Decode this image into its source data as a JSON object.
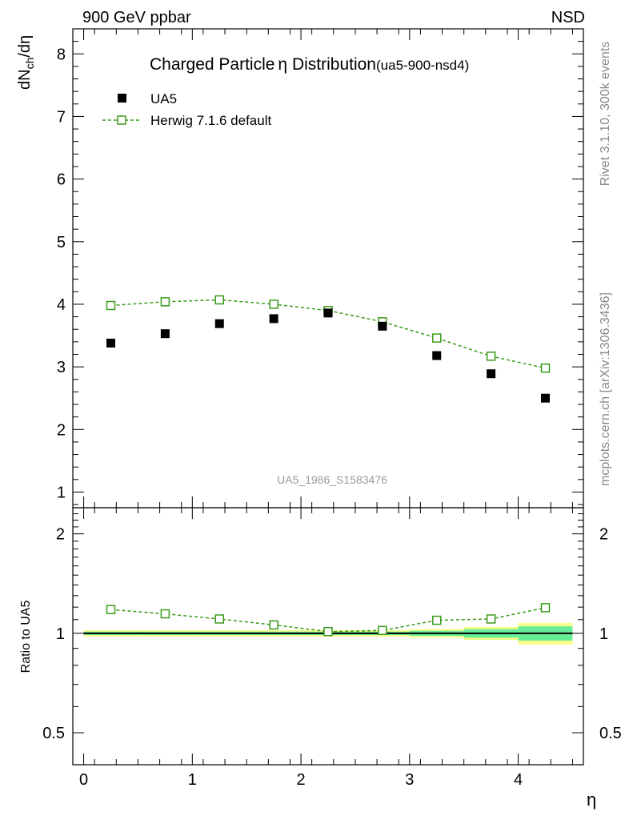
{
  "header": {
    "left": "900 GeV ppbar",
    "right": "NSD"
  },
  "title": {
    "main": "Charged Particle",
    "eta": "η",
    "dist": " Distribution",
    "tag": "(ua5-900-nsd4)"
  },
  "side": {
    "rivet": "Rivet 3.1.10,  300k events",
    "mcplots": "mcplots.cern.ch [arXiv:1306.3436]"
  },
  "watermark": "UA5_1986_S1583476",
  "axes": {
    "ylabel_main": "dN",
    "ylabel_sub": "ch",
    "ylabel_tail": "/dη",
    "ylabel_ratio": "Ratio to UA5",
    "xlabel": "η"
  },
  "legend": {
    "data_label": "UA5",
    "mc_label": "Herwig 7.1.6 default"
  },
  "colors": {
    "data": "#000000",
    "mc": "#3a9a1a",
    "band_inner": "#66ee99",
    "band_outer": "#ffff88"
  },
  "chart_data": {
    "type": "scatter",
    "x": [
      0.25,
      0.75,
      1.25,
      1.75,
      2.25,
      2.75,
      3.25,
      3.75,
      4.25
    ],
    "xlim": [
      -0.1,
      4.6
    ],
    "xticks": [
      "0",
      "1",
      "2",
      "3",
      "4"
    ],
    "main": {
      "ylim": [
        0.75,
        8.4
      ],
      "yticks": [
        "1",
        "2",
        "3",
        "4",
        "5",
        "6",
        "7",
        "8"
      ],
      "series": [
        {
          "name": "UA5",
          "values": [
            3.38,
            3.53,
            3.69,
            3.77,
            3.86,
            3.65,
            3.18,
            2.89,
            2.5
          ]
        },
        {
          "name": "Herwig 7.1.6 default",
          "values": [
            3.98,
            4.04,
            4.07,
            4.0,
            3.9,
            3.72,
            3.46,
            3.17,
            2.98
          ]
        }
      ]
    },
    "ratio": {
      "ylim": [
        0.4,
        2.4
      ],
      "scale": "log",
      "yticks": [
        "0.5",
        "1",
        "2"
      ],
      "values": [
        1.18,
        1.145,
        1.105,
        1.06,
        1.012,
        1.02,
        1.095,
        1.105,
        1.195
      ],
      "band_inner": [
        0.012,
        0.012,
        0.012,
        0.012,
        0.012,
        0.012,
        0.018,
        0.03,
        0.05
      ],
      "band_outer": [
        0.022,
        0.022,
        0.022,
        0.022,
        0.022,
        0.022,
        0.03,
        0.045,
        0.075
      ]
    }
  }
}
